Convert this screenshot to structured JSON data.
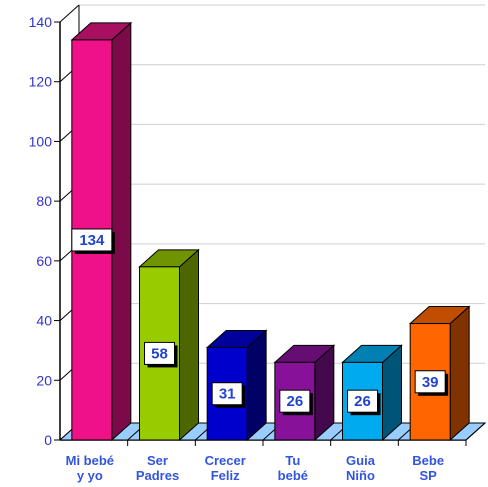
{
  "chart_data": {
    "type": "bar",
    "categories": [
      [
        "Mi bebé",
        "y yo"
      ],
      [
        "Ser",
        "Padres"
      ],
      [
        "Crecer",
        "Feliz"
      ],
      [
        "Tu",
        "bebé"
      ],
      [
        "Guia",
        "Niño"
      ],
      [
        "Bebe",
        "SP"
      ]
    ],
    "values": [
      134,
      58,
      31,
      26,
      26,
      39
    ],
    "data_labels": [
      "134",
      "58",
      "31",
      "26",
      "26",
      "39"
    ],
    "colors": [
      {
        "front": "#ee1188",
        "side": "#7a0a48",
        "top": "#a80f60"
      },
      {
        "front": "#99cc00",
        "side": "#4d6600",
        "top": "#6f9400"
      },
      {
        "front": "#0000cc",
        "side": "#000066",
        "top": "#00009a"
      },
      {
        "front": "#881199",
        "side": "#44084d",
        "top": "#660d73"
      },
      {
        "front": "#00aaee",
        "side": "#005577",
        "top": "#0080b3"
      },
      {
        "front": "#ff6600",
        "side": "#803300",
        "top": "#c04d00"
      }
    ],
    "yticks": [
      "0",
      "20",
      "40",
      "60",
      "80",
      "100",
      "120",
      "140"
    ],
    "ylim": [
      0,
      140
    ],
    "grid": true,
    "floor_color": "#99ccff",
    "xlabel": "",
    "ylabel": "",
    "title": ""
  }
}
